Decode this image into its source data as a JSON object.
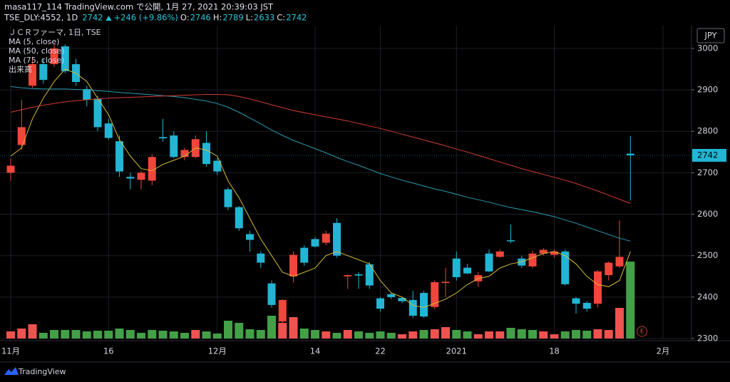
{
  "header": {
    "line1": "masa117_114 TradingView.com で公開, 1月 27, 2021 20:39:03 JST",
    "symbol": "TSE_DLY:4552, 1D",
    "last": "2742",
    "change": "+246 (+9.86%)",
    "ohlc": [
      {
        "label": "O:",
        "value": "2746"
      },
      {
        "label": "H:",
        "value": "2789"
      },
      {
        "label": "L:",
        "value": "2633"
      },
      {
        "label": "C:",
        "value": "2742"
      }
    ]
  },
  "footer": {
    "brand": "TradingView"
  },
  "chart_data": {
    "type": "candlestick",
    "legend_title": "ＪＣＲファーマ, 1日, TSE",
    "currency": "JPY",
    "event_marker": "E",
    "volume_name": "出来高",
    "up_color": "#f0463c",
    "down_color": "#22b5d4",
    "volume_palette": {
      "up": "#43a047",
      "down": "#ef5350"
    },
    "categories": [
      "11月",
      null,
      null,
      null,
      null,
      null,
      null,
      null,
      null,
      "16",
      null,
      null,
      null,
      null,
      null,
      null,
      null,
      null,
      null,
      "12月",
      null,
      null,
      null,
      null,
      null,
      null,
      null,
      null,
      "14",
      null,
      null,
      null,
      null,
      null,
      "22",
      null,
      null,
      null,
      null,
      null,
      null,
      "2021",
      null,
      null,
      null,
      null,
      null,
      null,
      null,
      null,
      "18",
      null,
      null,
      null,
      null,
      null,
      null,
      null,
      null,
      null,
      "2月",
      null,
      null
    ],
    "open": [
      2700,
      2767,
      2910,
      2962,
      2962,
      3005,
      2962,
      2902,
      2879,
      2819,
      2776,
      2690,
      2683,
      2681,
      2786,
      2790,
      2738,
      2738,
      2772,
      2729,
      2660,
      2617,
      2552,
      2505,
      2433,
      2341,
      2450,
      2519,
      2540,
      2531,
      2579,
      2450,
      2455,
      2479,
      2397,
      2407,
      2398,
      2393,
      2410,
      2376,
      2434,
      2493,
      2471,
      2438,
      2505,
      2497,
      2537,
      2493,
      2474,
      2505,
      2502,
      2510,
      2397,
      2386,
      2384,
      2453,
      2474,
      2746,
      null,
      null,
      null,
      null,
      null
    ],
    "high": [
      2735,
      2876,
      2980,
      2975,
      3010,
      3010,
      2975,
      2910,
      2885,
      2830,
      2790,
      2700,
      2705,
      2745,
      2830,
      2800,
      2760,
      2790,
      2800,
      2735,
      2665,
      2620,
      2560,
      2510,
      2440,
      2395,
      2510,
      2525,
      2545,
      2560,
      2590,
      2455,
      2460,
      2485,
      2400,
      2410,
      2400,
      2415,
      2415,
      2440,
      2470,
      2510,
      2480,
      2460,
      2515,
      2515,
      2575,
      2500,
      2512,
      2518,
      2515,
      2515,
      2400,
      2390,
      2465,
      2486,
      2585,
      2789,
      null,
      null,
      null,
      null,
      null
    ],
    "low": [
      2680,
      2755,
      2905,
      2915,
      2955,
      2940,
      2910,
      2860,
      2800,
      2780,
      2690,
      2660,
      2660,
      2670,
      2775,
      2735,
      2730,
      2735,
      2715,
      2695,
      2610,
      2560,
      2510,
      2470,
      2375,
      2335,
      2435,
      2475,
      2520,
      2525,
      2495,
      2420,
      2420,
      2420,
      2365,
      2395,
      2385,
      2350,
      2350,
      2370,
      2400,
      2440,
      2455,
      2425,
      2460,
      2495,
      2530,
      2470,
      2470,
      2500,
      2495,
      2428,
      2360,
      2365,
      2375,
      2440,
      2470,
      2633,
      null,
      null,
      null,
      null,
      null
    ],
    "close": [
      2717,
      2810,
      2962,
      2924,
      3000,
      2945,
      2919,
      2876,
      2810,
      2784,
      2703,
      2686,
      2700,
      2738,
      2783,
      2738,
      2755,
      2781,
      2721,
      2703,
      2617,
      2566,
      2538,
      2483,
      2381,
      2393,
      2502,
      2483,
      2522,
      2553,
      2500,
      2453,
      2452,
      2428,
      2372,
      2400,
      2390,
      2355,
      2353,
      2436,
      2437,
      2448,
      2457,
      2453,
      2462,
      2510,
      2535,
      2476,
      2505,
      2514,
      2510,
      2431,
      2384,
      2372,
      2462,
      2483,
      2497,
      2742,
      null,
      null,
      null,
      null,
      null
    ],
    "volume": [
      10000,
      14000,
      20000,
      8000,
      12000,
      12000,
      12000,
      10000,
      11000,
      11000,
      14000,
      12000,
      8000,
      12000,
      11000,
      10000,
      8000,
      12000,
      10000,
      7000,
      25000,
      22000,
      13000,
      12000,
      32000,
      22000,
      30000,
      14000,
      12000,
      10000,
      8000,
      12000,
      10000,
      8000,
      10000,
      8000,
      6000,
      10000,
      12000,
      13000,
      16000,
      12000,
      10000,
      6000,
      10000,
      10000,
      15000,
      13000,
      12000,
      10000,
      6000,
      10000,
      12000,
      11000,
      13000,
      12000,
      43000,
      108000,
      null,
      null,
      null,
      null,
      null
    ],
    "volume_colors": [
      "down",
      "down",
      "down",
      "up",
      "up",
      "up",
      "up",
      "up",
      "up",
      "up",
      "up",
      "up",
      "up",
      "up",
      "up",
      "up",
      "up",
      "down",
      "up",
      "up",
      "up",
      "up",
      "up",
      "up",
      "up",
      "down",
      "down",
      "up",
      "up",
      "down",
      "up",
      "down",
      "up",
      "up",
      "up",
      "up",
      "down",
      "down",
      "up",
      "down",
      "down",
      "up",
      "up",
      "down",
      "down",
      "down",
      "up",
      "up",
      "up",
      "down",
      "down",
      "up",
      "up",
      "up",
      "down",
      "down",
      "down",
      "up",
      null,
      null,
      null,
      null,
      null
    ],
    "series": [
      {
        "name": "MA (5, close)",
        "color": "#d8b935",
        "values": [
          2740,
          2760,
          2830,
          2880,
          2920,
          2950,
          2940,
          2920,
          2880,
          2840,
          2780,
          2740,
          2710,
          2705,
          2720,
          2730,
          2740,
          2760,
          2755,
          2740,
          2680,
          2640,
          2590,
          2540,
          2500,
          2460,
          2450,
          2460,
          2470,
          2500,
          2510,
          2500,
          2490,
          2480,
          2440,
          2410,
          2400,
          2380,
          2375,
          2385,
          2395,
          2410,
          2430,
          2445,
          2450,
          2470,
          2480,
          2485,
          2495,
          2505,
          2510,
          2500,
          2480,
          2450,
          2430,
          2425,
          2440,
          2510,
          null,
          null,
          null,
          null,
          null
        ]
      },
      {
        "name": "MA (50, close)",
        "color": "#2a9bb0",
        "values": [
          2908,
          2905,
          2903,
          2902,
          2902,
          2902,
          2901,
          2900,
          2898,
          2896,
          2894,
          2892,
          2890,
          2888,
          2886,
          2884,
          2881,
          2877,
          2873,
          2867,
          2858,
          2846,
          2832,
          2818,
          2803,
          2790,
          2778,
          2768,
          2758,
          2748,
          2737,
          2727,
          2718,
          2708,
          2698,
          2690,
          2682,
          2675,
          2668,
          2661,
          2655,
          2648,
          2641,
          2635,
          2629,
          2622,
          2616,
          2611,
          2606,
          2600,
          2594,
          2586,
          2578,
          2569,
          2560,
          2551,
          2542,
          2535,
          null,
          null,
          null,
          null,
          null
        ]
      },
      {
        "name": "MA (75, close)",
        "color": "#d23c32",
        "values": [
          2846,
          2852,
          2858,
          2863,
          2867,
          2871,
          2874,
          2876,
          2878,
          2880,
          2881,
          2882,
          2883,
          2884,
          2885,
          2886,
          2887,
          2888,
          2889,
          2889,
          2888,
          2884,
          2878,
          2871,
          2864,
          2857,
          2850,
          2845,
          2840,
          2835,
          2830,
          2825,
          2819,
          2813,
          2807,
          2800,
          2793,
          2786,
          2779,
          2772,
          2765,
          2757,
          2750,
          2742,
          2734,
          2726,
          2718,
          2710,
          2703,
          2696,
          2689,
          2682,
          2674,
          2665,
          2656,
          2646,
          2636,
          2626,
          null,
          null,
          null,
          null,
          null
        ]
      }
    ],
    "ylim": [
      2300,
      3048
    ],
    "yticks": [
      2300,
      2400,
      2500,
      2600,
      2700,
      2800,
      2900,
      3000
    ],
    "grid": true
  }
}
